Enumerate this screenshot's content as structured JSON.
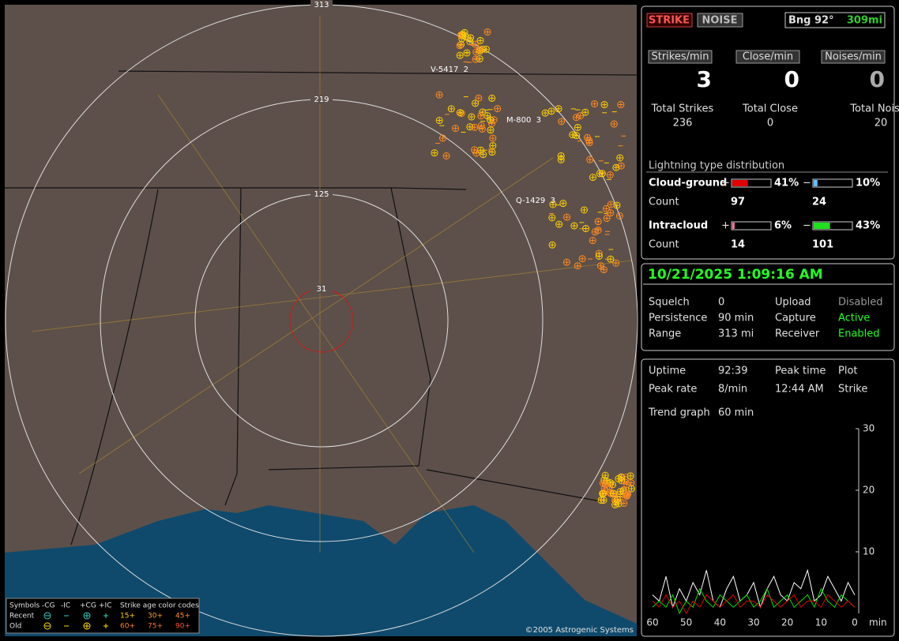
{
  "header": {
    "strike_button": "STRIKE",
    "noise_button": "NOISE",
    "bearing": "Bng 92°",
    "distance": "309mi"
  },
  "rates": {
    "labels": [
      "Strikes/min",
      "Close/min",
      "Noises/min"
    ],
    "values": [
      3,
      0,
      0
    ]
  },
  "totals": {
    "labels": [
      "Total Strikes",
      "Total Close",
      "Total Noises"
    ],
    "values": [
      236,
      0,
      20
    ]
  },
  "distribution": {
    "title": "Lightning type distribution",
    "count_label": "Count",
    "rows": [
      {
        "name": "Cloud-ground",
        "pos_sign": "+",
        "pos": {
          "value": 41,
          "label": "41%"
        },
        "neg_sign": "−",
        "neg": {
          "value": 10,
          "label": "10%"
        },
        "pos_count": 97,
        "neg_count": 24
      },
      {
        "name": "Intracloud",
        "pos_sign": "+",
        "pos": {
          "value": 6,
          "label": "6%"
        },
        "neg_sign": "−",
        "neg": {
          "value": 43,
          "label": "43%"
        },
        "pos_count": 14,
        "neg_count": 101
      }
    ]
  },
  "clock": "10/21/2025 1:09:16 AM",
  "settings": {
    "rows": [
      [
        "Squelch",
        "0",
        "Upload",
        "Disabled"
      ],
      [
        "Persistence",
        "90 min",
        "Capture",
        "Active"
      ],
      [
        "Range",
        "313 mi",
        "Receiver",
        "Enabled"
      ]
    ]
  },
  "stats": {
    "rows": [
      [
        "Uptime",
        "92:39",
        "Peak time",
        "Plot"
      ],
      [
        "Peak rate",
        "8/min",
        "12:44 AM",
        "Strike"
      ],
      [
        "Trend graph",
        "60 min"
      ]
    ]
  },
  "trend": {
    "ylim": [
      0,
      30
    ],
    "yticks": [
      10,
      20,
      30
    ],
    "xlim": [
      60,
      0
    ],
    "xticks": [
      60,
      50,
      40,
      30,
      20,
      10,
      0
    ],
    "x_unit": "min",
    "x": [
      60,
      58,
      56,
      54,
      52,
      50,
      48,
      46,
      44,
      42,
      40,
      38,
      36,
      34,
      32,
      30,
      28,
      26,
      24,
      22,
      20,
      18,
      16,
      14,
      12,
      10,
      8,
      6,
      4,
      2,
      0
    ],
    "series": [
      {
        "color": "#ffffff",
        "values": [
          3,
          2,
          6,
          1,
          4,
          2,
          5,
          3,
          7,
          2,
          1,
          4,
          6,
          2,
          3,
          5,
          1,
          4,
          6,
          3,
          2,
          5,
          4,
          7,
          2,
          3,
          6,
          4,
          2,
          5,
          3
        ]
      },
      {
        "color": "#00e000",
        "values": [
          1,
          2,
          1,
          3,
          0,
          2,
          1,
          4,
          2,
          1,
          3,
          2,
          1,
          2,
          3,
          1,
          2,
          4,
          1,
          2,
          3,
          1,
          2,
          3,
          1,
          4,
          2,
          1,
          3,
          2,
          1
        ]
      },
      {
        "color": "#e00000",
        "values": [
          2,
          1,
          3,
          1,
          2,
          0,
          2,
          1,
          3,
          2,
          1,
          2,
          3,
          1,
          2,
          2,
          1,
          3,
          2,
          1,
          2,
          3,
          1,
          2,
          2,
          1,
          3,
          2,
          1,
          2,
          1
        ]
      }
    ]
  },
  "map": {
    "ring_labels": [
      "313",
      "219",
      "125",
      "31"
    ],
    "stations": [
      "V-5417  2",
      "M-800  3",
      "Q-1429  3"
    ],
    "legend": {
      "symbols": "Symbols",
      "types": [
        "-CG",
        "-IC",
        "+CG",
        "+IC"
      ],
      "age_title": "Strike age color codes",
      "recent": "Recent",
      "old": "Old",
      "recent_ages": [
        "15+",
        "30+",
        "45+"
      ],
      "old_ages": [
        "60+",
        "75+",
        "90+"
      ]
    },
    "copyright": "©2005 Astrogenic Systems"
  }
}
